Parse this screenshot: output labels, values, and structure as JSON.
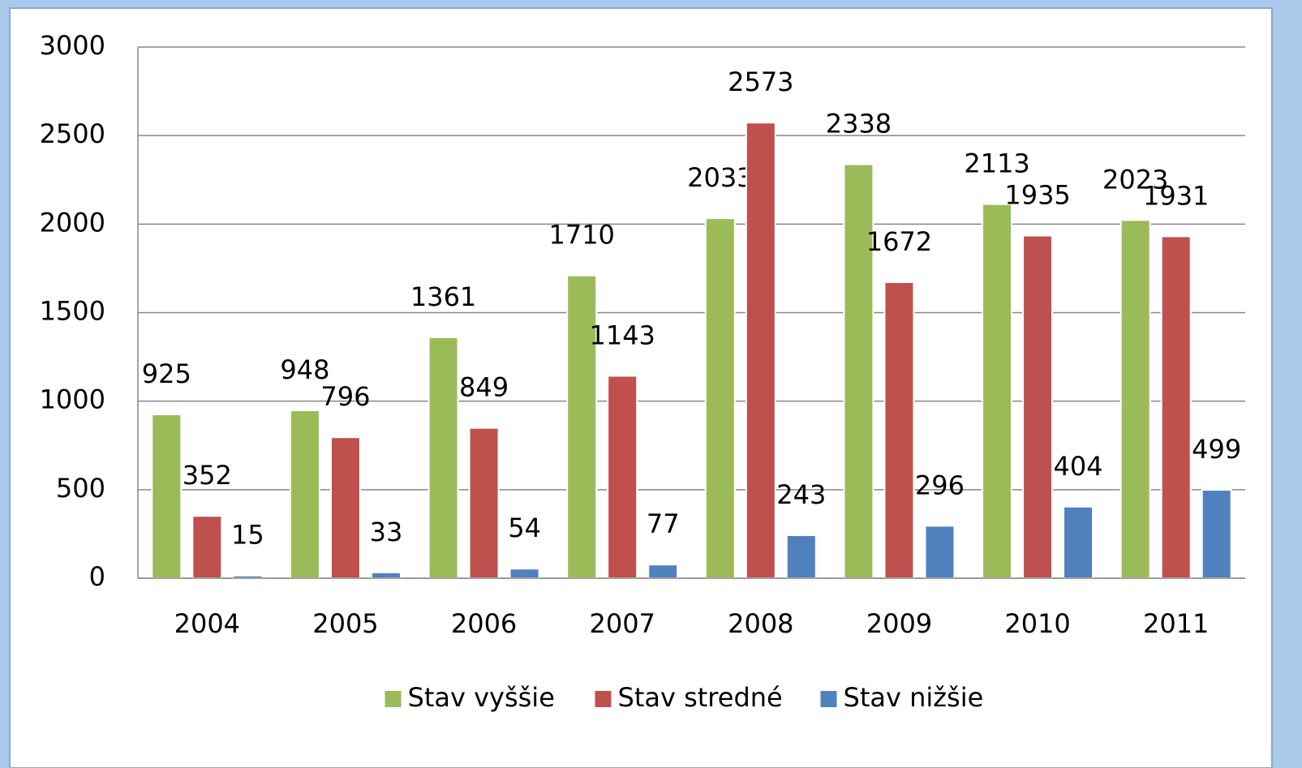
{
  "chart_data": {
    "type": "bar",
    "categories": [
      "2004",
      "2005",
      "2006",
      "2007",
      "2008",
      "2009",
      "2010",
      "2011"
    ],
    "series": [
      {
        "name": "Stav vyššie",
        "color": "#9bbb59",
        "values": [
          925,
          948,
          1361,
          1710,
          2033,
          2338,
          2113,
          2023
        ]
      },
      {
        "name": "Stav stredné",
        "color": "#c0504d",
        "values": [
          352,
          796,
          849,
          1143,
          2573,
          1672,
          1935,
          1931
        ]
      },
      {
        "name": "Stav nižšie",
        "color": "#4f81bd",
        "values": [
          15,
          33,
          54,
          77,
          243,
          296,
          404,
          499
        ]
      }
    ],
    "ylim": [
      0,
      3000
    ],
    "yticks": [
      0,
      500,
      1000,
      1500,
      2000,
      2500,
      3000
    ],
    "grid": true,
    "legend": "bottom"
  }
}
